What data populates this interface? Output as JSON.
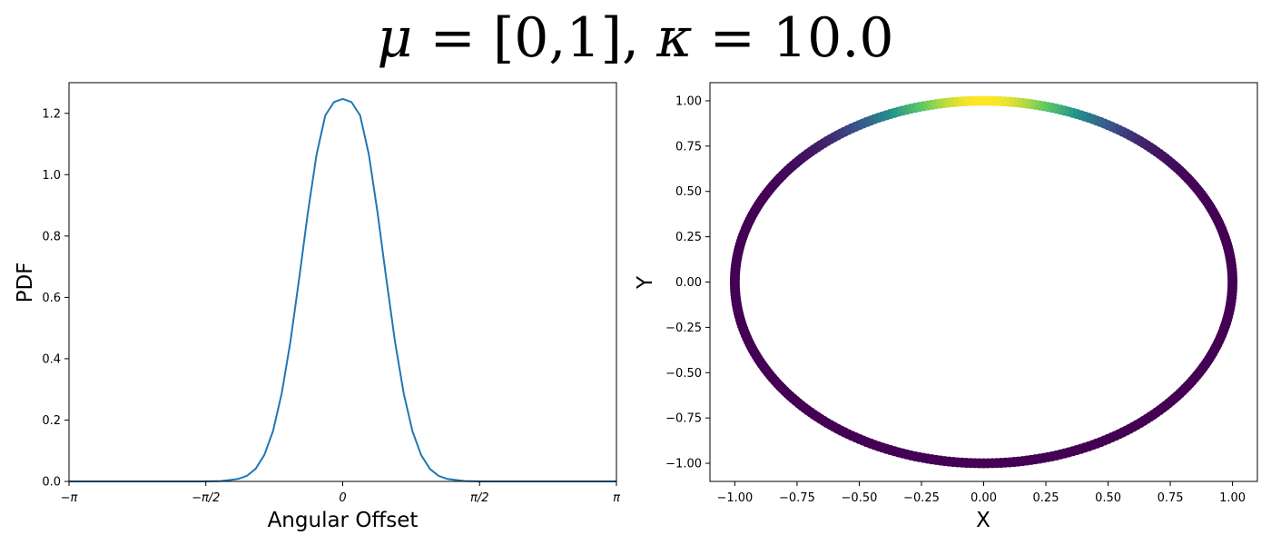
{
  "figure": {
    "suptitle": {
      "mu_symbol": "μ",
      "mu_value": " = [0,1],  ",
      "kappa_symbol": "κ",
      "kappa_value": " = 10.0"
    }
  },
  "chart_data": [
    {
      "type": "line",
      "title": "",
      "xlabel": "Angular Offset",
      "ylabel": "PDF",
      "xlim": [
        -3.14159265,
        3.14159265
      ],
      "ylim": [
        0,
        1.3
      ],
      "xticks": [
        {
          "value": -3.14159265,
          "label": "−π"
        },
        {
          "value": -1.57079633,
          "label": "−π/2"
        },
        {
          "value": 0,
          "label": "0"
        },
        {
          "value": 1.57079633,
          "label": "π/2"
        },
        {
          "value": 3.14159265,
          "label": "π"
        }
      ],
      "yticks": [
        0.0,
        0.2,
        0.4,
        0.6,
        0.8,
        1.0,
        1.2
      ],
      "ytick_labels": [
        "0.0",
        "0.2",
        "0.4",
        "0.6",
        "0.8",
        "1.0",
        "1.2"
      ],
      "grid": false,
      "series": [
        {
          "color": "#1f77b4",
          "x": [
            -3.1416,
            -2.8,
            -2.5,
            -2.2,
            -2.0,
            -1.8,
            -1.6,
            -1.4,
            -1.2,
            -1.1,
            -1.0,
            -0.9,
            -0.8,
            -0.7,
            -0.6,
            -0.5,
            -0.4,
            -0.3,
            -0.2,
            -0.1,
            0.0,
            0.1,
            0.2,
            0.3,
            0.4,
            0.5,
            0.6,
            0.7,
            0.8,
            0.9,
            1.0,
            1.1,
            1.2,
            1.4,
            1.6,
            1.8,
            2.0,
            2.2,
            2.5,
            2.8,
            3.1416
          ],
          "y": [
            0.0,
            0.0,
            0.0,
            0.0,
            0.0,
            0.0,
            0.0,
            0.001,
            0.008,
            0.018,
            0.041,
            0.086,
            0.164,
            0.287,
            0.456,
            0.661,
            0.876,
            1.066,
            1.193,
            1.237,
            1.247,
            1.237,
            1.193,
            1.066,
            0.876,
            0.661,
            0.456,
            0.287,
            0.164,
            0.086,
            0.041,
            0.018,
            0.008,
            0.001,
            0.0,
            0.0,
            0.0,
            0.0,
            0.0,
            0.0,
            0.0
          ]
        }
      ]
    },
    {
      "type": "scatter",
      "title": "",
      "xlabel": "X",
      "ylabel": "Y",
      "xlim": [
        -1.1,
        1.1
      ],
      "ylim": [
        -1.1,
        1.1
      ],
      "xticks": [
        -1.0,
        -0.75,
        -0.5,
        -0.25,
        0.0,
        0.25,
        0.5,
        0.75,
        1.0
      ],
      "xtick_labels": [
        "−1.00",
        "−0.75",
        "−0.50",
        "−0.25",
        "0.00",
        "0.25",
        "0.50",
        "0.75",
        "1.00"
      ],
      "yticks": [
        -1.0,
        -0.75,
        -0.5,
        -0.25,
        0.0,
        0.25,
        0.5,
        0.75,
        1.0
      ],
      "ytick_labels": [
        "−1.00",
        "−0.75",
        "−0.50",
        "−0.25",
        "0.00",
        "0.25",
        "0.50",
        "0.75",
        "1.00"
      ],
      "grid": false,
      "shape": "points on unit circle",
      "color_encoding": "viridis colormap by PDF value",
      "colormap": [
        "#440154",
        "#3b528b",
        "#21918c",
        "#5ec962",
        "#fde725"
      ],
      "num_points": 360,
      "mu": [
        0,
        1
      ],
      "kappa": 10.0
    }
  ]
}
